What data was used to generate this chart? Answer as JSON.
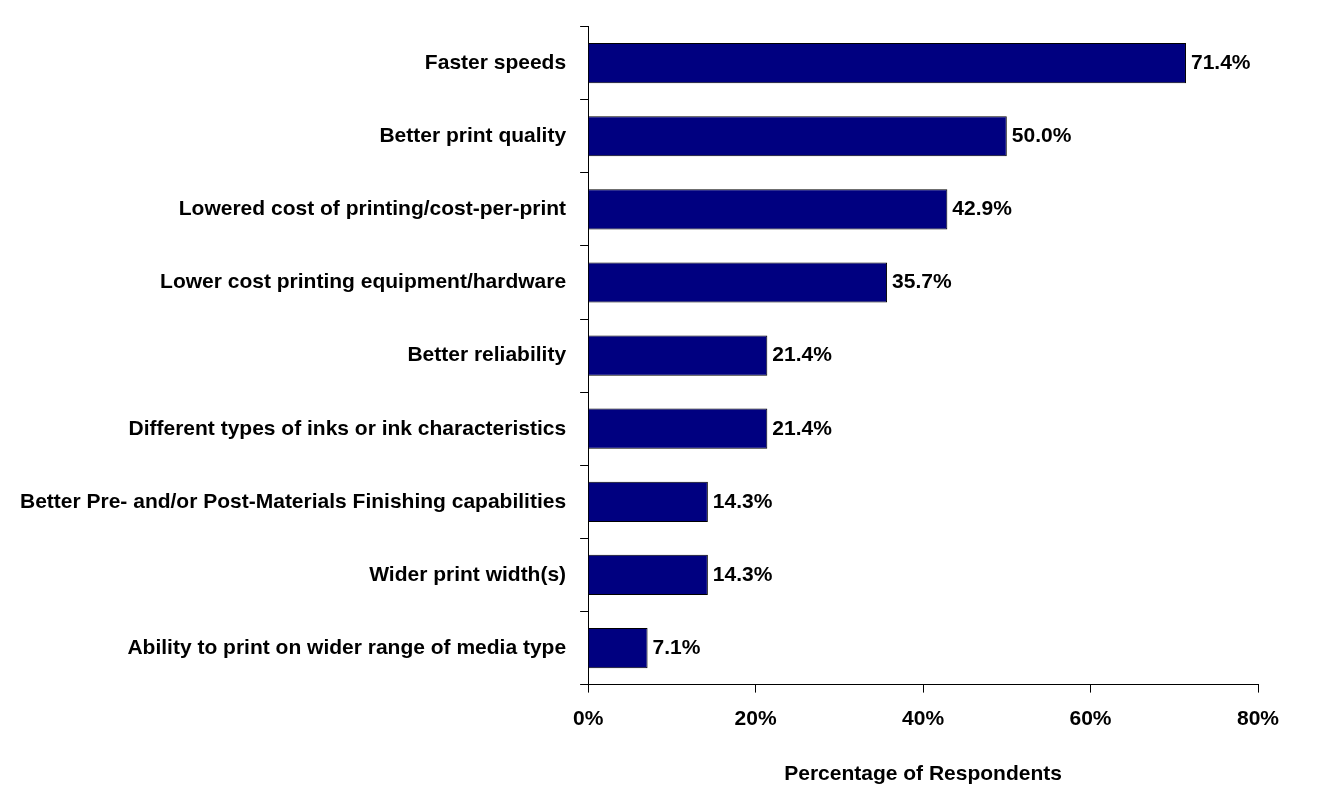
{
  "chart_data": {
    "type": "bar",
    "orientation": "horizontal",
    "xlabel": "Percentage of Respondents",
    "categories": [
      "Faster speeds",
      "Better print quality",
      "Lowered cost of printing/cost-per-print",
      "Lower cost printing equipment/hardware",
      "Better reliability",
      "Different types of inks or ink characteristics",
      "Better Pre- and/or Post-Materials Finishing capabilities",
      "Wider print width(s)",
      "Ability to print on wider range of media type"
    ],
    "values": [
      71.4,
      50.0,
      42.9,
      35.7,
      21.4,
      21.4,
      14.3,
      14.3,
      7.1
    ],
    "value_labels": [
      "71.4%",
      "50.0%",
      "42.9%",
      "35.7%",
      "21.4%",
      "21.4%",
      "14.3%",
      "14.3%",
      "7.1%"
    ],
    "color": "#000080",
    "xlim": [
      0,
      80
    ],
    "xticks": [
      {
        "value": 0,
        "label": "0%"
      },
      {
        "value": 20,
        "label": "20%"
      },
      {
        "value": 40,
        "label": "40%"
      },
      {
        "value": 60,
        "label": "60%"
      },
      {
        "value": 80,
        "label": "80%"
      }
    ],
    "grid": false,
    "legend": false
  }
}
